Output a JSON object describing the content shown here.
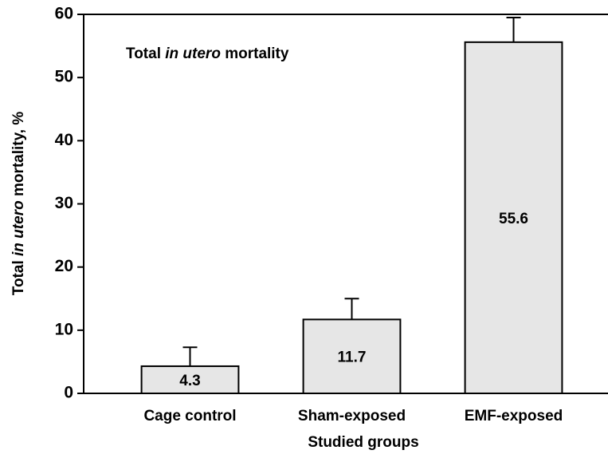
{
  "chart_data": {
    "type": "bar",
    "title": [
      "Total ",
      "in utero",
      " mortality"
    ],
    "ylabel": [
      "Total ",
      "in utero",
      " mortality, %"
    ],
    "xlabel": "Studied groups",
    "categories": [
      "Cage control",
      "Sham-exposed",
      "EMF-exposed"
    ],
    "values": [
      4.3,
      11.7,
      55.6
    ],
    "errors": [
      3.0,
      3.3,
      3.9
    ],
    "color": "#e6e6e6",
    "ylim": [
      0,
      60
    ],
    "yticks": [
      0,
      10,
      20,
      30,
      40,
      50,
      60
    ],
    "grid": false
  }
}
